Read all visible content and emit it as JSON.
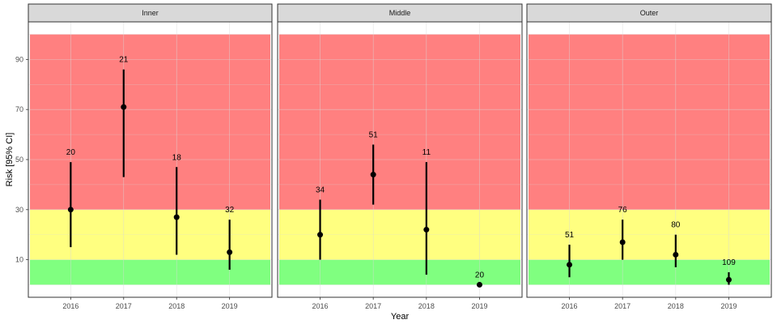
{
  "chart_data": {
    "type": "scatter",
    "xlabel": "Year",
    "ylabel": "Risk [95% CI]",
    "categories": [
      "2016",
      "2017",
      "2018",
      "2019"
    ],
    "ylim": [
      -5,
      105
    ],
    "yticks": [
      "10",
      "30",
      "50",
      "70",
      "90"
    ],
    "grid": true,
    "bands": [
      {
        "from": 0,
        "to": 10,
        "color": "#80ff80"
      },
      {
        "from": 10,
        "to": 30,
        "color": "#ffff80"
      },
      {
        "from": 30,
        "to": 100,
        "color": "#ff8080"
      }
    ],
    "panels": [
      {
        "name": "Inner",
        "points": [
          {
            "x": "2016",
            "y": 30,
            "low": 15,
            "high": 49,
            "n": "20"
          },
          {
            "x": "2017",
            "y": 71,
            "low": 43,
            "high": 86,
            "n": "21"
          },
          {
            "x": "2018",
            "y": 27,
            "low": 12,
            "high": 47,
            "n": "18"
          },
          {
            "x": "2019",
            "y": 13,
            "low": 6,
            "high": 26,
            "n": "32"
          }
        ]
      },
      {
        "name": "Middle",
        "points": [
          {
            "x": "2016",
            "y": 20,
            "low": 10,
            "high": 34,
            "n": "34"
          },
          {
            "x": "2017",
            "y": 44,
            "low": 32,
            "high": 56,
            "n": "51"
          },
          {
            "x": "2018",
            "y": 22,
            "low": 4,
            "high": 49,
            "n": "11"
          },
          {
            "x": "2019",
            "y": 0,
            "low": 0,
            "high": 0,
            "n": "20"
          }
        ]
      },
      {
        "name": "Outer",
        "points": [
          {
            "x": "2016",
            "y": 8,
            "low": 3,
            "high": 16,
            "n": "51"
          },
          {
            "x": "2017",
            "y": 17,
            "low": 10,
            "high": 26,
            "n": "76"
          },
          {
            "x": "2018",
            "y": 12,
            "low": 7,
            "high": 20,
            "n": "80"
          },
          {
            "x": "2019",
            "y": 2,
            "low": 0,
            "high": 5,
            "n": "109"
          }
        ]
      }
    ]
  }
}
